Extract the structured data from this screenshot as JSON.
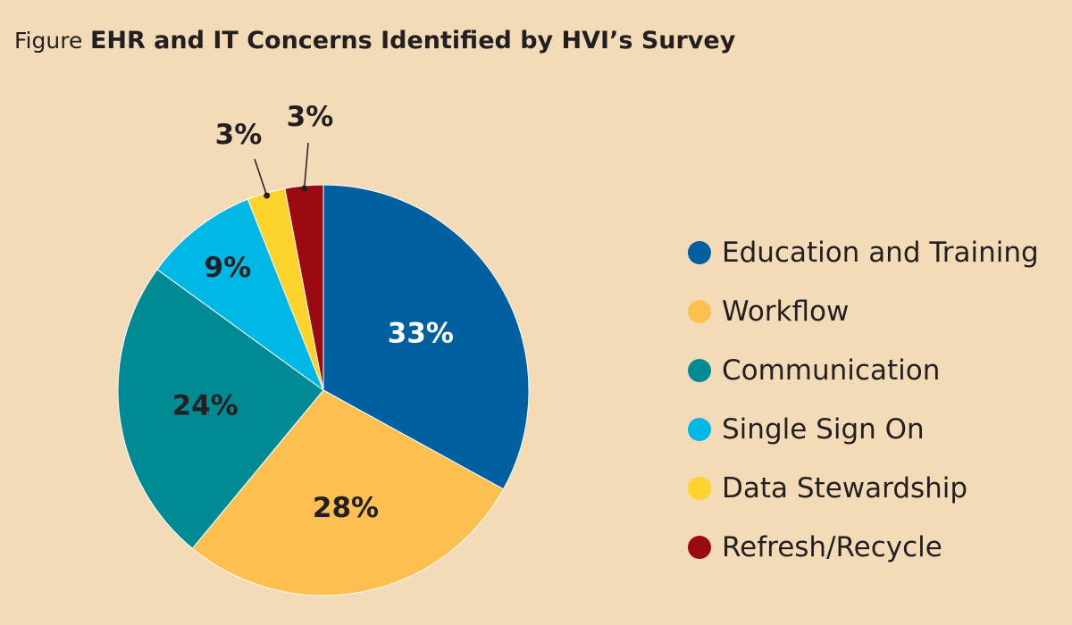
{
  "title": {
    "prefix": "Figure",
    "main": "EHR and IT Concerns Identified by HVI’s Survey"
  },
  "chart_data": {
    "type": "pie",
    "title": "EHR and IT Concerns Identified by HVI’s Survey",
    "legend_placement": "right",
    "slices": [
      {
        "label": "Education and Training",
        "value": 33,
        "display": "33%",
        "color": "#0060a0",
        "text_color": "#ffffff"
      },
      {
        "label": "Workflow",
        "value": 28,
        "display": "28%",
        "color": "#fdbf50",
        "text_color": "#231f20"
      },
      {
        "label": "Communication",
        "value": 24,
        "display": "24%",
        "color": "#008b94",
        "text_color": "#231f20"
      },
      {
        "label": "Single Sign On",
        "value": 9,
        "display": "9%",
        "color": "#00b8e6",
        "text_color": "#231f20"
      },
      {
        "label": "Data Stewardship",
        "value": 3,
        "display": "3%",
        "color": "#fdd22a",
        "text_color": "#231f20"
      },
      {
        "label": "Refresh/Recycle",
        "value": 3,
        "display": "3%",
        "color": "#9b0a10",
        "text_color": "#231f20"
      }
    ]
  }
}
